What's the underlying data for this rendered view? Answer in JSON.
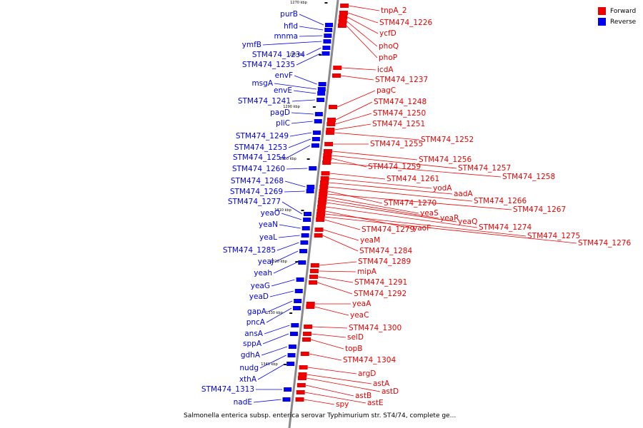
{
  "caption": "Salmonella enterica subsp. enterica serovar Typhimurium str. ST4/74, complete ge...",
  "legend": [
    {
      "label": "Forward",
      "color": "#ee0000"
    },
    {
      "label": "Reverse",
      "color": "#0000ee"
    }
  ],
  "colors": {
    "forward": "#ee0000",
    "reverse": "#0000ee",
    "backbone": "#888888"
  },
  "ticks": [
    "1270 kbp",
    "1280 kbp",
    "1290 kbp",
    "1300 kbp",
    "1310 kbp",
    "1320 kbp",
    "1330 kbp",
    "1340 kbp"
  ],
  "reverse_genes": [
    "purB",
    "hfld",
    "mnma",
    "ymfB",
    "STM474_1234",
    "STM474_1235",
    "envF",
    "msgA",
    "envE",
    "STM474_1241",
    "pagD",
    "pliC",
    "STM474_1249",
    "STM474_1253",
    "STM474_1254",
    "STM474_1260",
    "STM474_1268",
    "STM474_1269",
    "STM474_1277",
    "yeaO",
    "yeaN",
    "yeaL",
    "STM474_1285",
    "yeaJ",
    "yeah",
    "yeaG",
    "yeaD",
    "gapA",
    "pncA",
    "ansA",
    "sppA",
    "gdhA",
    "nudg",
    "xthA",
    "STM474_1313",
    "nadE"
  ],
  "forward_genes": [
    "tnpA_2",
    "STM474_1226",
    "ycfD",
    "phoQ",
    "phoP",
    "icdA",
    "STM474_1237",
    "pagC",
    "STM474_1248",
    "STM474_1250",
    "STM474_1251",
    "STM474_1252",
    "STM474_1255",
    "STM474_1256",
    "STM474_1257",
    "STM474_1259",
    "STM474_1258",
    "STM474_1261",
    "yodA",
    "aadA",
    "STM474_1266",
    "STM474_1270",
    "STM474_1267",
    "yeaS",
    "yeaR",
    "yeaQ",
    "STM474_1274",
    "yaoF",
    "STM474_1275",
    "STM474_1279",
    "STM474_1276",
    "yeaM",
    "STM474_1284",
    "STM474_1289",
    "mipA",
    "STM474_1291",
    "STM474_1292",
    "yeaA",
    "yeaC",
    "STM474_1300",
    "selD",
    "topB",
    "STM474_1304",
    "argD",
    "astA",
    "astD",
    "astB",
    "astE",
    "spy"
  ]
}
